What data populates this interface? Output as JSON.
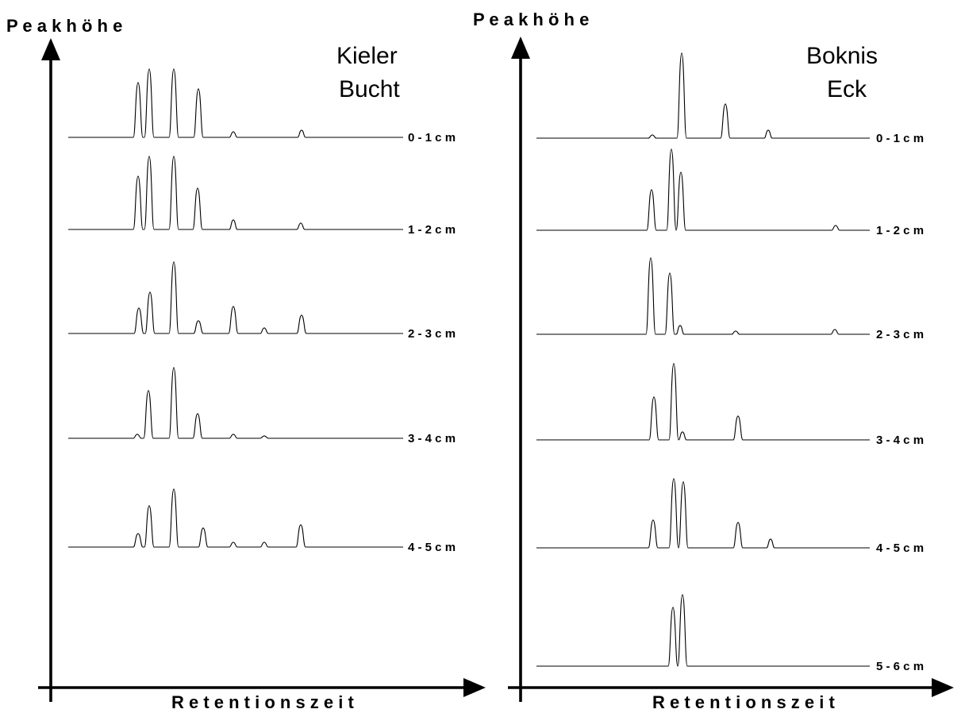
{
  "chart_data": [
    {
      "type": "line",
      "title": "Kieler Bucht",
      "title_lines": [
        "Kieler",
        "Bucht"
      ],
      "xlabel": "R e t e n t i o n s z e i t",
      "ylabel": "P e a k h ö h e",
      "traces": [
        {
          "label": "0 - 1   c m",
          "peaks": [
            {
              "x": 174,
              "h": 69
            },
            {
              "x": 188,
              "h": 86
            },
            {
              "x": 219,
              "h": 86
            },
            {
              "x": 250,
              "h": 61
            },
            {
              "x": 294,
              "h": 7
            },
            {
              "x": 380,
              "h": 9
            }
          ]
        },
        {
          "label": "1 - 2   c m",
          "peaks": [
            {
              "x": 174,
              "h": 67
            },
            {
              "x": 188,
              "h": 92
            },
            {
              "x": 219,
              "h": 92
            },
            {
              "x": 249,
              "h": 52
            },
            {
              "x": 294,
              "h": 12
            },
            {
              "x": 379,
              "h": 8
            }
          ]
        },
        {
          "label": "2 - 3   c m",
          "peaks": [
            {
              "x": 175,
              "h": 32
            },
            {
              "x": 189,
              "h": 52
            },
            {
              "x": 219,
              "h": 90
            },
            {
              "x": 250,
              "h": 16
            },
            {
              "x": 294,
              "h": 34
            },
            {
              "x": 333,
              "h": 7
            },
            {
              "x": 380,
              "h": 23
            }
          ]
        },
        {
          "label": "3 - 4   c m",
          "peaks": [
            {
              "x": 173,
              "h": 5
            },
            {
              "x": 187,
              "h": 60
            },
            {
              "x": 219,
              "h": 89
            },
            {
              "x": 249,
              "h": 31
            },
            {
              "x": 294,
              "h": 5
            },
            {
              "x": 333,
              "h": 3
            }
          ]
        },
        {
          "label": "4 - 5   c m",
          "peaks": [
            {
              "x": 174,
              "h": 17
            },
            {
              "x": 188,
              "h": 52
            },
            {
              "x": 219,
              "h": 73
            },
            {
              "x": 256,
              "h": 24
            },
            {
              "x": 294,
              "h": 6
            },
            {
              "x": 333,
              "h": 6
            },
            {
              "x": 379,
              "h": 28
            }
          ]
        }
      ]
    },
    {
      "type": "line",
      "title": "Boknis Eck",
      "title_lines": [
        "Boknis",
        "Eck"
      ],
      "xlabel": "R e t e n t i o n s z e i t",
      "ylabel": "P e a k h ö h e",
      "traces": [
        {
          "label": "0 - 1   c m",
          "peaks": [
            {
              "x": 822,
              "h": 4
            },
            {
              "x": 859,
              "h": 107
            },
            {
              "x": 914,
              "h": 43
            },
            {
              "x": 968,
              "h": 10
            }
          ]
        },
        {
          "label": "1 - 2   c m",
          "peaks": [
            {
              "x": 821,
              "h": 51
            },
            {
              "x": 846,
              "h": 102
            },
            {
              "x": 858,
              "h": 73
            },
            {
              "x": 1053,
              "h": 6
            }
          ]
        },
        {
          "label": "2 - 3   c m",
          "peaks": [
            {
              "x": 820,
              "h": 96
            },
            {
              "x": 844,
              "h": 77
            },
            {
              "x": 857,
              "h": 11
            },
            {
              "x": 927,
              "h": 4
            },
            {
              "x": 1052,
              "h": 6
            }
          ]
        },
        {
          "label": "3 - 4   c m",
          "peaks": [
            {
              "x": 824,
              "h": 54
            },
            {
              "x": 849,
              "h": 96
            },
            {
              "x": 860,
              "h": 10
            },
            {
              "x": 930,
              "h": 30
            }
          ]
        },
        {
          "label": "4 - 5   c m",
          "peaks": [
            {
              "x": 823,
              "h": 35
            },
            {
              "x": 849,
              "h": 87
            },
            {
              "x": 861,
              "h": 83
            },
            {
              "x": 930,
              "h": 32
            },
            {
              "x": 971,
              "h": 11
            }
          ]
        },
        {
          "label": "5 - 6   c m",
          "peaks": [
            {
              "x": 848,
              "h": 74
            },
            {
              "x": 860,
              "h": 90
            }
          ]
        }
      ]
    }
  ]
}
